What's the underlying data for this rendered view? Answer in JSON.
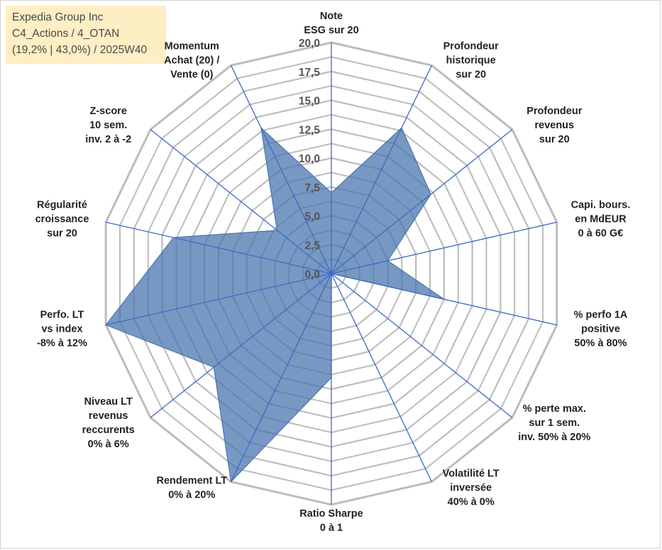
{
  "info": {
    "line1": "Expedia Group Inc",
    "line2": "C4_Actions / 4_OTAN",
    "line3": "(19,2% | 43,0%) / 2025W40"
  },
  "colors": {
    "fill": "#4a76ad",
    "axis": "#3a6bc9",
    "grid": "#bcbcbc",
    "box_bg": "#fdeec4"
  },
  "chart_data": {
    "type": "radar",
    "rmin": 0,
    "rmax": 20,
    "tick_step": 2.5,
    "tick_labels": [
      "0,0",
      "2,5",
      "5,0",
      "7,5",
      "10,0",
      "12,5",
      "15,0",
      "17,5",
      "20,0"
    ],
    "axes": [
      {
        "label": [
          "Note",
          "ESG sur 20"
        ],
        "value": 7
      },
      {
        "label": [
          "Profondeur",
          "historique",
          "sur 20"
        ],
        "value": 14
      },
      {
        "label": [
          "Profondeur",
          "revenus",
          "sur 20"
        ],
        "value": 11
      },
      {
        "label": [
          "Capi. bours.",
          "en MdEUR",
          "0 à 60 G€"
        ],
        "value": 5
      },
      {
        "label": [
          "% perfo 1A",
          "positive",
          "50% à 80%"
        ],
        "value": 10
      },
      {
        "label": [
          "% perte max.",
          "sur 1 sem.",
          "inv. 50% à 20%"
        ],
        "value": 0
      },
      {
        "label": [
          "Volatilité LT",
          "inversée",
          "40% à 0%"
        ],
        "value": 0
      },
      {
        "label": [
          "Ratio Sharpe",
          "0 à 1"
        ],
        "value": 9
      },
      {
        "label": [
          "Rendement LT",
          "0% à 20%"
        ],
        "value": 20
      },
      {
        "label": [
          "Niveau LT",
          "revenus",
          "reccurents",
          "0% à 6%"
        ],
        "value": 13
      },
      {
        "label": [
          "Perfo. LT",
          "vs index",
          "-8% à 12%"
        ],
        "value": 20
      },
      {
        "label": [
          "Régularité",
          "croissance",
          "sur 20"
        ],
        "value": 14
      },
      {
        "label": [
          "Z-score",
          "10 sem.",
          "inv. 2 à -2"
        ],
        "value": 6
      },
      {
        "label": [
          "Momentum",
          "Achat (20) /",
          "Vente (0)"
        ],
        "value": 14
      }
    ]
  }
}
